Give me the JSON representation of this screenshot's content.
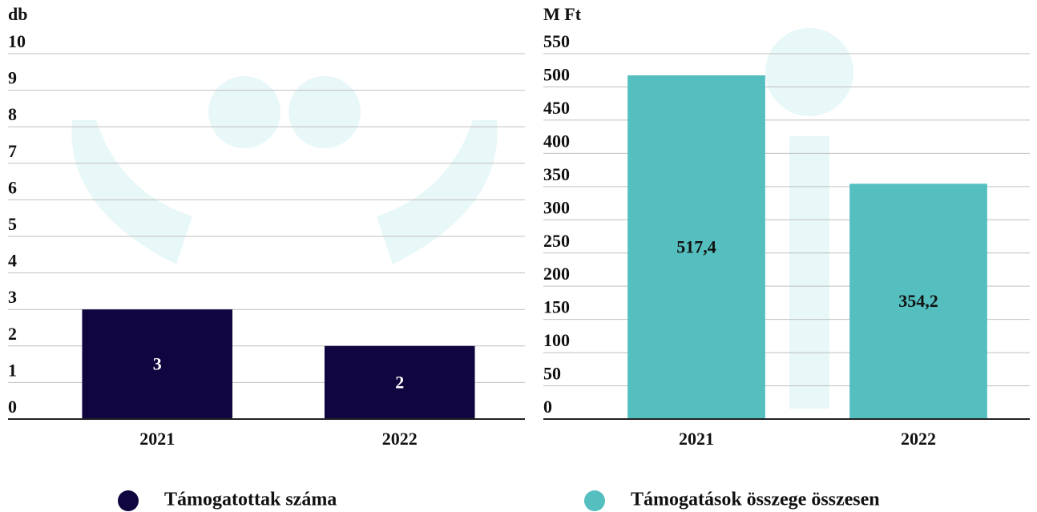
{
  "chart_data": [
    {
      "type": "bar",
      "y_label": "db",
      "categories": [
        "2021",
        "2022"
      ],
      "series": [
        {
          "name": "Támogatottak száma",
          "color": "#10053f",
          "values": [
            3,
            2
          ]
        }
      ],
      "ylim": [
        0,
        10
      ],
      "yticks": [
        0,
        1,
        2,
        3,
        4,
        5,
        6,
        7,
        8,
        9,
        10
      ],
      "grid": true
    },
    {
      "type": "bar",
      "y_label": "M Ft",
      "categories": [
        "2021",
        "2022"
      ],
      "series": [
        {
          "name": "Támogatások összege összesen",
          "color": "#55bfc0",
          "values": [
            517.4,
            354.2
          ],
          "value_labels": [
            "517,4",
            "354,2"
          ]
        }
      ],
      "ylim": [
        0,
        550
      ],
      "yticks": [
        0,
        50,
        100,
        150,
        200,
        250,
        300,
        350,
        400,
        450,
        500,
        550
      ],
      "grid": true
    }
  ]
}
